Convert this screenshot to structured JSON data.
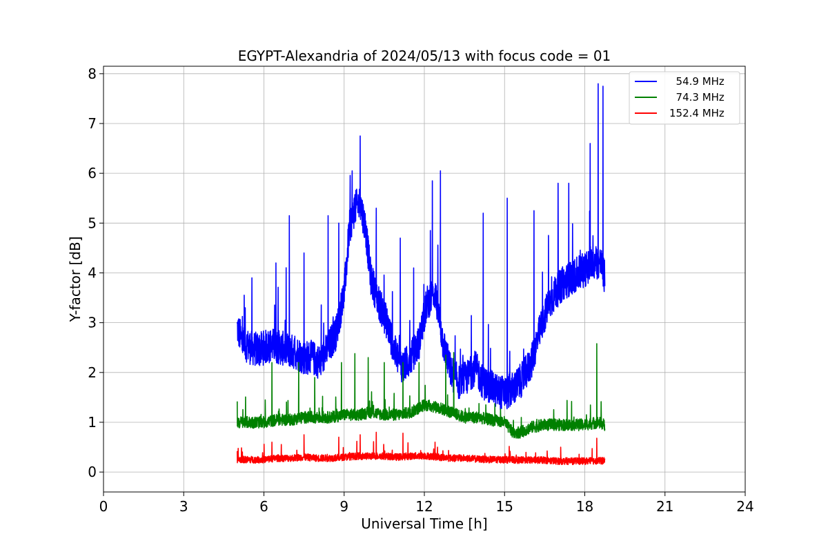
{
  "chart_data": {
    "type": "line",
    "title": "EGYPT-Alexandria of 2024/05/13 with focus code = 01",
    "xlabel": "Universal Time [h]",
    "ylabel": "Y-factor [dB]",
    "xlim": [
      0,
      24
    ],
    "ylim": [
      -0.4,
      8.15
    ],
    "xticks": [
      0,
      3,
      6,
      9,
      12,
      15,
      18,
      21,
      24
    ],
    "yticks": [
      0,
      1,
      2,
      3,
      4,
      5,
      6,
      7,
      8
    ],
    "grid": true,
    "legend_position": "top-right",
    "series": [
      {
        "name": "  54.9 MHz",
        "color": "#0000ff",
        "x": [
          5.0,
          5.2,
          5.5,
          5.8,
          6.0,
          6.3,
          6.6,
          6.9,
          7.2,
          7.5,
          7.8,
          8.1,
          8.4,
          8.7,
          9.0,
          9.2,
          9.4,
          9.6,
          9.8,
          10.0,
          10.3,
          10.6,
          10.9,
          11.2,
          11.5,
          11.8,
          12.1,
          12.4,
          12.7,
          13.0,
          13.3,
          13.6,
          13.9,
          14.2,
          14.5,
          14.8,
          15.1,
          15.4,
          15.7,
          16.0,
          16.3,
          16.6,
          16.9,
          17.2,
          17.5,
          17.8,
          18.1,
          18.4,
          18.6,
          18.75
        ],
        "values": [
          2.9,
          2.6,
          2.5,
          2.45,
          2.5,
          2.55,
          2.5,
          2.45,
          2.4,
          2.3,
          2.3,
          2.2,
          2.5,
          2.8,
          3.6,
          4.9,
          5.3,
          5.4,
          4.9,
          3.9,
          3.4,
          3.0,
          2.4,
          2.1,
          2.3,
          2.6,
          3.4,
          3.6,
          2.6,
          2.0,
          1.8,
          1.9,
          2.1,
          1.8,
          1.7,
          1.6,
          1.6,
          1.7,
          1.9,
          2.2,
          2.8,
          3.3,
          3.6,
          3.8,
          3.9,
          4.0,
          4.1,
          4.2,
          4.2,
          3.9
        ],
        "spikes_x": [
          5.3,
          5.55,
          6.45,
          6.95,
          7.5,
          8.4,
          8.8,
          9.3,
          9.6,
          10.2,
          11.1,
          11.6,
          12.3,
          12.6,
          14.2,
          15.1,
          16.1,
          17.0,
          17.4,
          18.2,
          18.5,
          18.68
        ],
        "spikes_y": [
          3.3,
          3.9,
          4.2,
          5.15,
          4.4,
          5.15,
          5.0,
          6.05,
          6.75,
          5.3,
          4.7,
          4.1,
          5.85,
          6.05,
          5.2,
          5.5,
          5.25,
          5.8,
          5.8,
          6.6,
          7.8,
          7.75
        ]
      },
      {
        "name": "  74.3 MHz",
        "color": "#008000",
        "x": [
          5.0,
          5.5,
          6.0,
          6.5,
          7.0,
          7.5,
          8.0,
          8.5,
          9.0,
          9.5,
          10.0,
          10.5,
          11.0,
          11.5,
          12.0,
          12.5,
          13.0,
          13.5,
          14.0,
          14.5,
          15.0,
          15.3,
          15.6,
          16.0,
          16.5,
          17.0,
          17.5,
          18.0,
          18.5,
          18.75
        ],
        "values": [
          1.0,
          1.0,
          1.0,
          1.05,
          1.05,
          1.1,
          1.1,
          1.1,
          1.15,
          1.15,
          1.2,
          1.15,
          1.15,
          1.2,
          1.35,
          1.3,
          1.2,
          1.1,
          1.1,
          1.05,
          1.0,
          0.8,
          0.8,
          0.9,
          0.95,
          0.95,
          0.95,
          0.95,
          1.0,
          0.95
        ],
        "spikes_x": [
          5.0,
          6.3,
          7.3,
          7.9,
          8.9,
          9.4,
          9.9,
          10.5,
          11.2,
          11.8,
          12.8,
          13.1,
          14.3,
          18.45
        ],
        "spikes_y": [
          1.42,
          2.2,
          2.2,
          1.9,
          2.2,
          2.38,
          2.3,
          2.2,
          2.2,
          2.2,
          2.35,
          2.4,
          1.35,
          2.58
        ]
      },
      {
        "name": "152.4 MHz",
        "color": "#ff0000",
        "x": [
          5.0,
          5.5,
          6.0,
          6.5,
          7.0,
          7.5,
          8.0,
          8.5,
          9.0,
          9.5,
          10.0,
          10.5,
          11.0,
          11.5,
          12.0,
          12.5,
          13.0,
          13.5,
          14.0,
          14.5,
          15.0,
          15.5,
          16.0,
          16.5,
          17.0,
          17.5,
          18.0,
          18.5,
          18.75
        ],
        "values": [
          0.25,
          0.25,
          0.25,
          0.28,
          0.28,
          0.3,
          0.28,
          0.28,
          0.3,
          0.32,
          0.32,
          0.32,
          0.3,
          0.32,
          0.33,
          0.3,
          0.28,
          0.28,
          0.26,
          0.25,
          0.25,
          0.24,
          0.24,
          0.24,
          0.22,
          0.22,
          0.22,
          0.23,
          0.22
        ],
        "spikes_x": [
          5.0,
          6.3,
          7.5,
          8.8,
          9.6,
          10.2,
          11.2,
          12.4,
          17.1,
          18.45
        ],
        "spikes_y": [
          0.42,
          0.6,
          0.75,
          0.7,
          0.75,
          0.8,
          0.78,
          0.6,
          0.5,
          0.68
        ]
      }
    ]
  }
}
